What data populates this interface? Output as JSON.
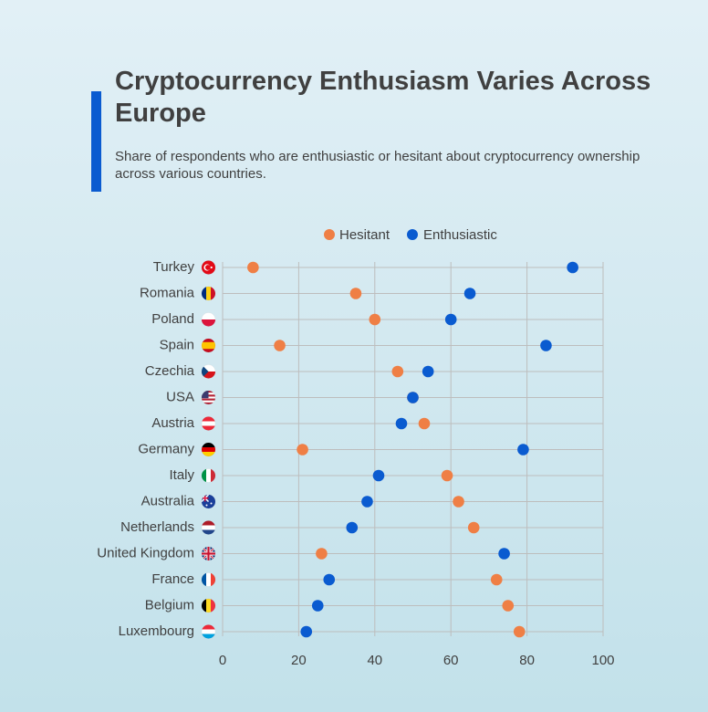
{
  "title": "Cryptocurrency Enthusiasm Varies Across Europe",
  "subtitle": "Share of respondents who are enthusiastic or hesitant about cryptocurrency ownership across various countries.",
  "colors": {
    "hesitant": "#ef7f45",
    "enthusiastic": "#0a5bd0",
    "accent": "#0a5bd0",
    "grid": "#bdbdbd"
  },
  "chart_data": {
    "type": "scatter",
    "title": "Cryptocurrency Enthusiasm Varies Across Europe",
    "subtitle": "Share of respondents who are enthusiastic or hesitant about cryptocurrency ownership across various countries.",
    "xlim": [
      0,
      100
    ],
    "xticks": [
      0,
      20,
      40,
      60,
      80,
      100
    ],
    "grid": true,
    "legend_position": "top-center",
    "categories": [
      "Turkey",
      "Romania",
      "Poland",
      "Spain",
      "Czechia",
      "USA",
      "Austria",
      "Germany",
      "Italy",
      "Australia",
      "Netherlands",
      "United Kingdom",
      "France",
      "Belgium",
      "Luxembourg"
    ],
    "series": [
      {
        "name": "Hesitant",
        "color": "#ef7f45",
        "values": [
          8,
          35,
          40,
          15,
          46,
          50,
          53,
          21,
          59,
          62,
          66,
          26,
          72,
          75,
          78
        ]
      },
      {
        "name": "Enthusiastic",
        "color": "#0a5bd0",
        "values": [
          92,
          65,
          60,
          85,
          54,
          50,
          47,
          79,
          41,
          38,
          34,
          74,
          28,
          25,
          22
        ]
      }
    ],
    "flags": [
      "flag-turkey-icon",
      "flag-romania-icon",
      "flag-poland-icon",
      "flag-spain-icon",
      "flag-czechia-icon",
      "flag-usa-icon",
      "flag-austria-icon",
      "flag-germany-icon",
      "flag-italy-icon",
      "flag-australia-icon",
      "flag-netherlands-icon",
      "flag-united-kingdom-icon",
      "flag-france-icon",
      "flag-belgium-icon",
      "flag-luxembourg-icon"
    ]
  }
}
